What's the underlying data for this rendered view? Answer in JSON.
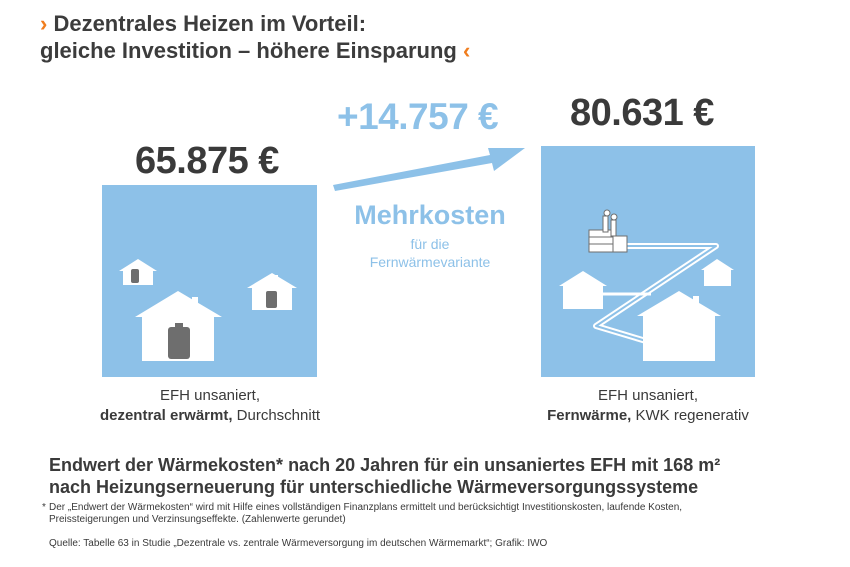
{
  "title": {
    "line1": "Dezentrales Heizen im Vorteil:",
    "line2": "gleiche Investition – höhere Einsparung",
    "left_mark": "›",
    "right_mark": "‹"
  },
  "left_panel": {
    "amount": "65.875 €",
    "caption_line1": "EFH unsaniert,",
    "caption_bold": "dezentral erwärmt,",
    "caption_rest": " Durchschnitt"
  },
  "right_panel": {
    "amount": "80.631 €",
    "caption_line1": "EFH unsaniert,",
    "caption_bold": "Fernwärme,",
    "caption_rest": " KWK regenerativ"
  },
  "difference": {
    "amount": "+14.757 €",
    "label": "Mehrkosten",
    "sub_line1": "für die",
    "sub_line2": "Fernwärmevariante"
  },
  "subheading": {
    "line1": "Endwert der Wärmekosten* nach 20 Jahren für ein unsaniertes EFH mit 168 m²",
    "line2": "nach Heizungserneuerung für unterschiedliche Wärmeversorgungssysteme"
  },
  "footnote": {
    "star": "*",
    "text": "Der „Endwert der Wärmekosten“ wird mit Hilfe eines vollständigen Finanzplans ermittelt und berücksichtigt Investitionskosten, laufende Kosten, Preissteigerungen und Verzinsungseffekte. (Zahlenwerte gerundet)"
  },
  "source": "Quelle: Tabelle 63 in Studie „Dezentrale vs. zentrale Wärmeversorgung im deutschen Wärmemarkt“; Grafik: IWO",
  "colors": {
    "panel": "#8dc1e8",
    "accent_orange": "#f07d1e",
    "text_dark": "#3a3a3a",
    "tank_gray": "#6e6e6e"
  },
  "icons": {
    "left": [
      "house-icon",
      "oil-tank-icon"
    ],
    "right": [
      "house-icon",
      "power-plant-icon",
      "district-heating-pipe-icon"
    ],
    "arrow": "arrow-up-right-icon"
  }
}
